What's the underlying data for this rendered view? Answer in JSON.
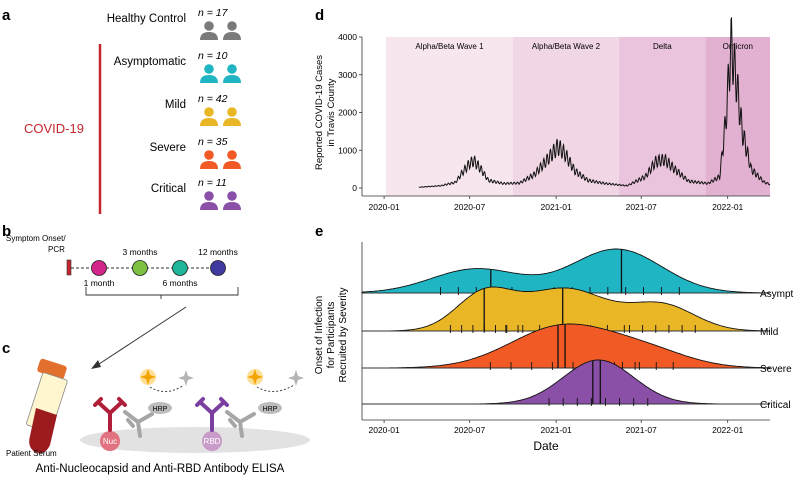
{
  "panel_letters": {
    "a": "a",
    "b": "b",
    "c": "c",
    "d": "d",
    "e": "e"
  },
  "panel_a": {
    "covid_label": "COVID-19",
    "groups": [
      {
        "name": "Healthy Control",
        "n_text": "n = 17",
        "color": "#7a7a7a"
      },
      {
        "name": "Asymptomatic",
        "n_text": "n = 10",
        "color": "#1fb5c3"
      },
      {
        "name": "Mild",
        "n_text": "n = 42",
        "color": "#e9b626"
      },
      {
        "name": "Severe",
        "n_text": "n = 35",
        "color": "#f15a24"
      },
      {
        "name": "Critical",
        "n_text": "n = 11",
        "color": "#8a4fa6"
      }
    ],
    "accent_color": "#c4262e"
  },
  "panel_b": {
    "onset_label_1": "Symptom Onset/",
    "onset_label_2": "PCR",
    "timepoints": [
      {
        "label": "1 month",
        "color": "#d4268a"
      },
      {
        "label": "3 months",
        "color": "#7dc142"
      },
      {
        "label": "6 months",
        "color": "#1fb59a"
      },
      {
        "label": "12 months",
        "color": "#3f3aa0"
      }
    ]
  },
  "panel_c": {
    "patient_label": "Patient Serum",
    "hrp_label": "HRP",
    "nuc_label": "Nuc",
    "rbd_label": "RBD",
    "title": "Anti-Nucleocapsid and Anti-RBD Antibody ELISA"
  },
  "chart_data": [
    {
      "type": "line",
      "panel": "d",
      "ylabel_1": "Reported COVID-19 Cases",
      "ylabel_2": "in Travis County",
      "ylim": [
        0,
        4000
      ],
      "yticks": [
        "0",
        "1000",
        "2000",
        "3000",
        "4000"
      ],
      "xticks": [
        "2020-01",
        "2020-07",
        "2021-01",
        "2021-07",
        "2022-01"
      ],
      "waves": [
        {
          "name": "Alpha/Beta Wave 1",
          "start": "2020-01-01",
          "end": "2020-10-01",
          "color": "#f8e6ef"
        },
        {
          "name": "Alpha/Beta Wave 2",
          "start": "2020-10-01",
          "end": "2021-05-15",
          "color": "#f1d7e6"
        },
        {
          "name": "Delta",
          "start": "2021-05-15",
          "end": "2021-11-15",
          "color": "#eac3dc"
        },
        {
          "name": "Omicron",
          "start": "2021-11-15",
          "end": "2022-04-01",
          "color": "#e2b0d1"
        }
      ],
      "series": [
        {
          "values": [
            [
              "2020-03-15",
              20
            ],
            [
              "2020-05-01",
              60
            ],
            [
              "2020-06-01",
              150
            ],
            [
              "2020-06-15",
              400
            ],
            [
              "2020-07-01",
              650
            ],
            [
              "2020-07-10",
              720
            ],
            [
              "2020-07-25",
              500
            ],
            [
              "2020-08-10",
              200
            ],
            [
              "2020-09-10",
              120
            ],
            [
              "2020-10-15",
              130
            ],
            [
              "2020-11-15",
              350
            ],
            [
              "2020-12-10",
              700
            ],
            [
              "2021-01-05",
              1100
            ],
            [
              "2021-01-20",
              900
            ],
            [
              "2021-02-10",
              450
            ],
            [
              "2021-03-10",
              200
            ],
            [
              "2021-04-15",
              120
            ],
            [
              "2021-06-01",
              60
            ],
            [
              "2021-07-10",
              300
            ],
            [
              "2021-08-01",
              700
            ],
            [
              "2021-08-20",
              750
            ],
            [
              "2021-09-10",
              500
            ],
            [
              "2021-10-10",
              180
            ],
            [
              "2021-11-20",
              120
            ],
            [
              "2021-12-15",
              300
            ],
            [
              "2021-12-28",
              1800
            ],
            [
              "2022-01-08",
              3800
            ],
            [
              "2022-01-18",
              3000
            ],
            [
              "2022-02-01",
              1500
            ],
            [
              "2022-02-20",
              500
            ],
            [
              "2022-03-20",
              150
            ],
            [
              "2022-04-01",
              100
            ]
          ]
        }
      ]
    },
    {
      "type": "area",
      "panel": "e",
      "ylabel_1": "Onset of Infection",
      "ylabel_2": "for Participants",
      "ylabel_3": "Recruited by Severity",
      "xlabel": "Date",
      "xticks": [
        "2020-01",
        "2020-07",
        "2021-01",
        "2021-07",
        "2022-01"
      ],
      "series": [
        {
          "name": "Asympt",
          "color": "#1fb5c3",
          "peaks": [
            {
              "mu": "2020-07-15",
              "sd": 95,
              "h": 0.55
            },
            {
              "mu": "2021-05-10",
              "sd": 95,
              "h": 1.0
            }
          ],
          "medians": [
            "2020-08-15",
            "2021-05-20"
          ]
        },
        {
          "name": "Mild",
          "color": "#e9b626",
          "peaks": [
            {
              "mu": "2020-08-01",
              "sd": 60,
              "h": 0.85
            },
            {
              "mu": "2021-01-20",
              "sd": 90,
              "h": 1.0
            },
            {
              "mu": "2021-08-15",
              "sd": 70,
              "h": 0.6
            }
          ],
          "medians": [
            "2020-08-01",
            "2021-01-15"
          ]
        },
        {
          "name": "Severe",
          "color": "#f15a24",
          "peaks": [
            {
              "mu": "2021-01-15",
              "sd": 110,
              "h": 1.0
            },
            {
              "mu": "2021-07-15",
              "sd": 90,
              "h": 0.35
            }
          ],
          "medians": [
            "2021-01-05",
            "2021-01-20"
          ]
        },
        {
          "name": "Critical",
          "color": "#8a4fa6",
          "peaks": [
            {
              "mu": "2021-04-01",
              "sd": 75,
              "h": 1.0
            }
          ],
          "medians": [
            "2021-03-20",
            "2021-04-05"
          ]
        }
      ]
    }
  ]
}
